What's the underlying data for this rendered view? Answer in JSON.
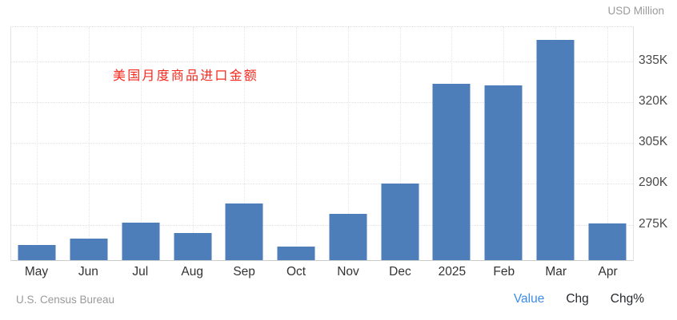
{
  "unit_label": "USD Million",
  "source": "U.S. Census Bureau",
  "footer_tabs": [
    {
      "label": "Value",
      "active": true
    },
    {
      "label": "Chg",
      "active": false
    },
    {
      "label": "Chg%",
      "active": false
    }
  ],
  "chart_data": {
    "type": "bar",
    "title": "美国月度商品进口金额",
    "ylabel": "USD Million",
    "xlabel": "",
    "source": "U.S. Census Bureau",
    "categories": [
      "May",
      "Jun",
      "Jul",
      "Aug",
      "Sep",
      "Oct",
      "Nov",
      "Dec",
      "2025",
      "Feb",
      "Mar",
      "Apr"
    ],
    "values": [
      268000,
      270300,
      276200,
      272400,
      283200,
      267400,
      279400,
      290500,
      327100,
      326500,
      343000,
      275900
    ],
    "ylim": [
      262300,
      348300
    ],
    "yticks": [
      {
        "value": 275000,
        "label": "275K"
      },
      {
        "value": 290000,
        "label": "290K"
      },
      {
        "value": 305000,
        "label": "305K"
      },
      {
        "value": 320000,
        "label": "320K"
      },
      {
        "value": 335000,
        "label": "335K"
      }
    ],
    "bar_color": "#4d7eba",
    "annotation_color": "#f5281e",
    "active_tab_color": "#3c8ce8",
    "grid": "dotted",
    "legend_position": "none",
    "yaxis_side": "right"
  }
}
